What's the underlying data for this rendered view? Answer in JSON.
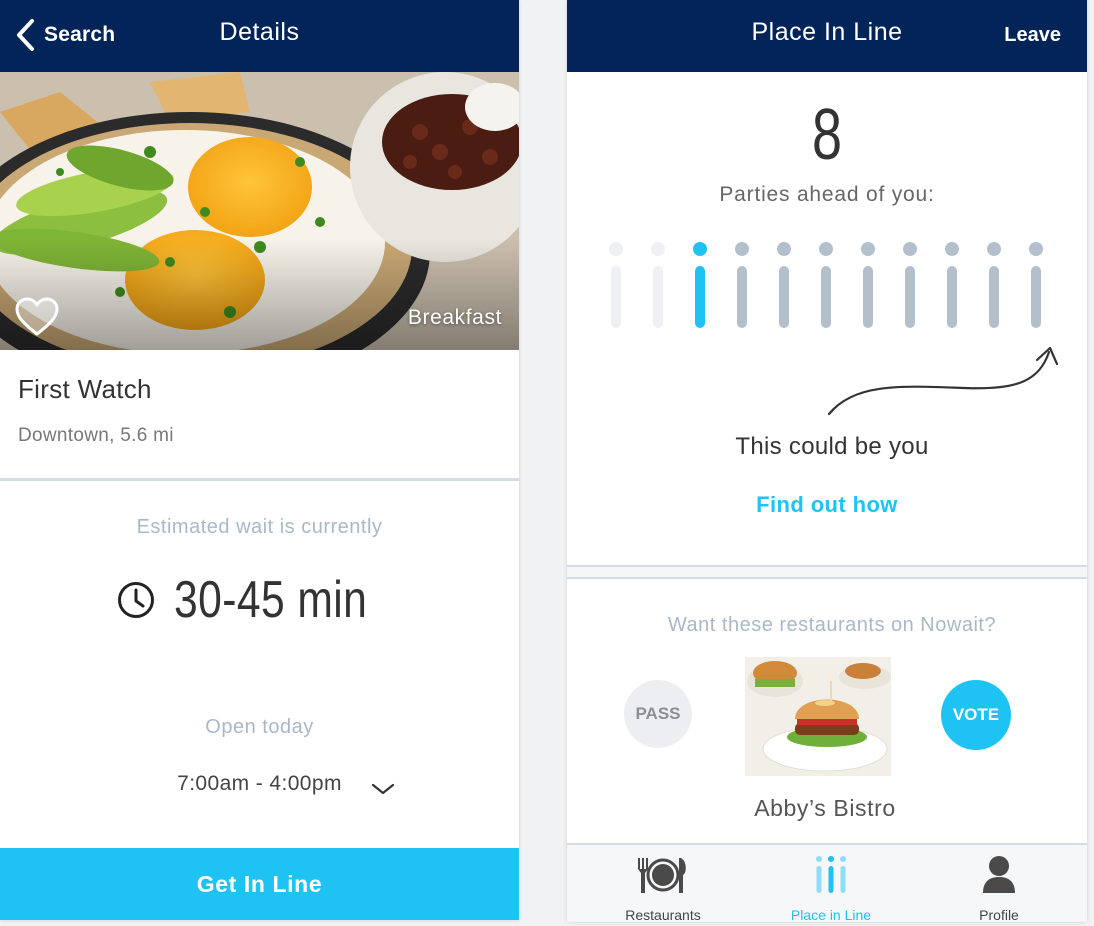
{
  "details_screen": {
    "nav": {
      "back_label": "Search",
      "title": "Details"
    },
    "hero": {
      "tag": "Breakfast"
    },
    "restaurant": {
      "name": "First Watch",
      "location": "Downtown, 5.6 mi"
    },
    "wait": {
      "label": "Estimated wait is currently",
      "value": "30-45 min"
    },
    "hours": {
      "label": "Open today",
      "value": "7:00am - 4:00pm"
    },
    "cta_label": "Get In Line"
  },
  "line_screen": {
    "nav": {
      "title": "Place In Line",
      "action_label": "Leave"
    },
    "parties_ahead_count": "8",
    "parties_label": "Parties ahead of you:",
    "queue": {
      "total_slots": 11,
      "highlighted_slot": 3,
      "faded_slots": 2
    },
    "tease": "This could be you",
    "find_out_label": "Find out how",
    "vote": {
      "prompt": "Want these restaurants on Nowait?",
      "pass_label": "PASS",
      "vote_label": "VOTE",
      "candidate_name": "Abby’s Bistro"
    },
    "tabs": [
      {
        "label": "Restaurants",
        "icon": "plate-cutlery-icon",
        "active": false
      },
      {
        "label": "Place in Line",
        "icon": "queue-icon",
        "active": true
      },
      {
        "label": "Profile",
        "icon": "person-icon",
        "active": false
      }
    ]
  },
  "colors": {
    "navy": "#022459",
    "accent": "#1ec3f4",
    "muted_text": "#a9b8c9",
    "queue_bar": "#b4bfcc",
    "queue_faded": "#eef0f3"
  }
}
